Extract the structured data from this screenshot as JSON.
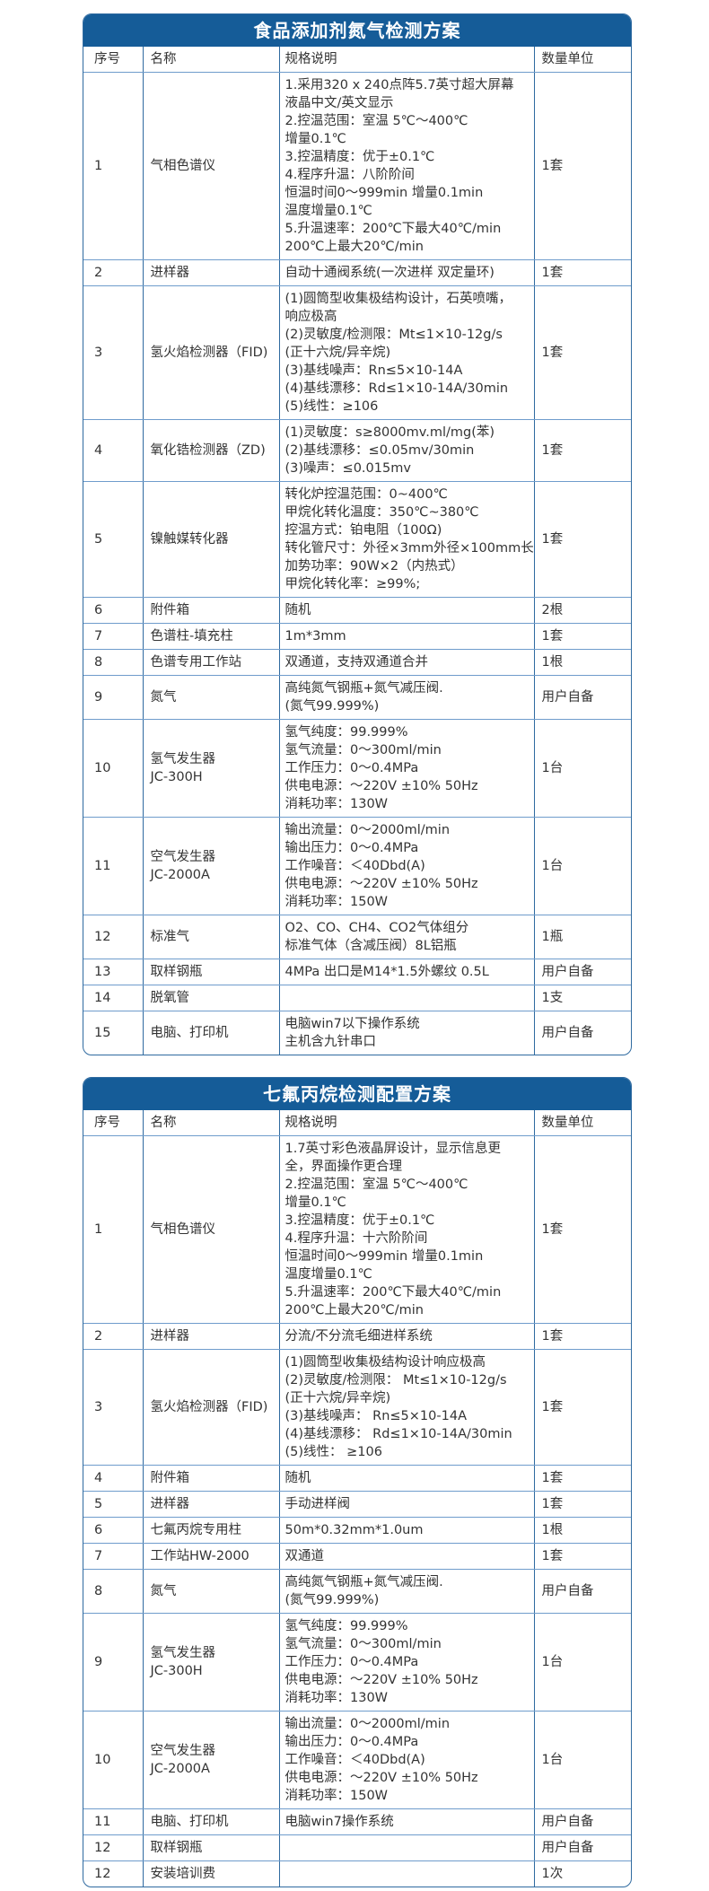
{
  "tables": [
    {
      "title": "食品添加剂氮气检测方案",
      "headers": [
        "序号",
        "名称",
        "规格说明",
        "数量单位"
      ],
      "rows": [
        {
          "no": "1",
          "name": [
            "气相色谱仪"
          ],
          "spec": [
            "1.采用320 x 240点阵5.7英寸超大屏幕",
            "液晶中文/英文显示",
            "2.控温范围：室温 5℃～400℃",
            "增量0.1℃",
            "3.控温精度：优于±0.1℃",
            "4.程序升温：八阶阶间",
            "恒温时间0～999min 增量0.1min",
            "温度增量0.1℃",
            "5.升温速率：200℃下最大40℃/min",
            "200℃上最大20℃/min"
          ],
          "qty": "1套"
        },
        {
          "no": "2",
          "name": [
            "进样器"
          ],
          "spec": [
            "自动十通阀系统(一次进样 双定量环)"
          ],
          "qty": "1套"
        },
        {
          "no": "3",
          "name": [
            "氢火焰检测器（FID)"
          ],
          "spec": [
            "(1)圆筒型收集极结构设计，石英喷嘴，",
            "响应极高",
            "(2)灵敏度/检测限：Mt≤1×10-12g/s",
            "(正十六烷/异辛烷)",
            "(3)基线噪声：Rn≤5×10-14A",
            "(4)基线漂移：Rd≤1×10-14A/30min",
            "(5)线性：≥106"
          ],
          "qty": "1套"
        },
        {
          "no": "4",
          "name": [
            "氧化锆检测器（ZD)"
          ],
          "spec": [
            "(1)灵敏度：s≥8000mv.ml/mg(苯)",
            "(2)基线漂移：≤0.05mv/30min",
            "(3)噪声：≤0.015mv"
          ],
          "qty": "1套"
        },
        {
          "no": "5",
          "name": [
            "镍触媒转化器"
          ],
          "spec": [
            "转化炉控温范围：0~400℃",
            "甲烷化转化温度：350℃~380℃",
            "控温方式：铂电阻（100Ω)",
            "转化管尺寸：外径×3mm外径×100mm长",
            "加势功率：90W×2（内热式）",
            "甲烷化转化率：≥99%;"
          ],
          "qty": "1套"
        },
        {
          "no": "6",
          "name": [
            "附件箱"
          ],
          "spec": [
            "随机"
          ],
          "qty": "2根"
        },
        {
          "no": "7",
          "name": [
            "色谱柱-填充柱"
          ],
          "spec": [
            "1m*3mm"
          ],
          "qty": "1套"
        },
        {
          "no": "8",
          "name": [
            "色谱专用工作站"
          ],
          "spec": [
            "双通道，支持双通道合并"
          ],
          "qty": "1根"
        },
        {
          "no": "9",
          "name": [
            "氮气"
          ],
          "spec": [
            "高纯氮气钢瓶+氮气减压阀.",
            "(氮气99.999%)"
          ],
          "qty": "用户自备"
        },
        {
          "no": "10",
          "name": [
            "氢气发生器",
            "JC-300H"
          ],
          "spec": [
            "氢气纯度：99.999%",
            "氢气流量：0～300ml/min",
            "工作压力：0～0.4MPa",
            "供电电源：～220V ±10% 50Hz",
            "消耗功率：130W"
          ],
          "qty": "1台"
        },
        {
          "no": "11",
          "name": [
            "空气发生器",
            "JC-2000A"
          ],
          "spec": [
            "输出流量：0～2000ml/min",
            "输出压力：0～0.4MPa",
            "工作噪音：＜40Dbd(A)",
            "供电电源：～220V ±10% 50Hz",
            "消耗功率：150W"
          ],
          "qty": "1台"
        },
        {
          "no": "12",
          "name": [
            "标准气"
          ],
          "spec": [
            "O2、CO、CH4、CO2气体组分",
            "标准气体（含减压阀）8L铝瓶"
          ],
          "qty": "1瓶"
        },
        {
          "no": "13",
          "name": [
            "取样钢瓶"
          ],
          "spec": [
            "4MPa 出口是M14*1.5外螺纹 0.5L"
          ],
          "qty": "用户自备"
        },
        {
          "no": "14",
          "name": [
            "脱氧管"
          ],
          "spec": [
            ""
          ],
          "qty": "1支"
        },
        {
          "no": "15",
          "name": [
            "电脑、打印机"
          ],
          "spec": [
            "电脑win7以下操作系统",
            "主机含九针串口"
          ],
          "qty": "用户自备"
        }
      ]
    },
    {
      "title": "七氟丙烷检测配置方案",
      "headers": [
        "序号",
        "名称",
        "规格说明",
        "数量单位"
      ],
      "rows": [
        {
          "no": "1",
          "name": [
            "气相色谱仪"
          ],
          "spec": [
            "1.7英寸彩色液晶屏设计，显示信息更",
            "全，界面操作更合理",
            "2.控温范围：室温 5℃～400℃",
            "增量0.1℃",
            "3.控温精度：优于±0.1℃",
            "4.程序升温：十六阶阶间",
            "恒温时间0～999min 增量0.1min",
            "温度增量0.1℃",
            "5.升温速率：200℃下最大40℃/min",
            "200℃上最大20℃/min"
          ],
          "qty": "1套"
        },
        {
          "no": "2",
          "name": [
            "进样器"
          ],
          "spec": [
            "分流/不分流毛细进样系统"
          ],
          "qty": "1套"
        },
        {
          "no": "3",
          "name": [
            "氢火焰检测器（FID)"
          ],
          "spec": [
            "(1)圆筒型收集极结构设计响应极高",
            "(2)灵敏度/检测限： Mt≤1×10-12g/s",
            "(正十六烷/异辛烷)",
            "(3)基线噪声： Rn≤5×10-14A",
            "(4)基线漂移： Rd≤1×10-14A/30min",
            "(5)线性： ≥106"
          ],
          "qty": "1套"
        },
        {
          "no": "4",
          "name": [
            "附件箱"
          ],
          "spec": [
            "随机"
          ],
          "qty": "1套"
        },
        {
          "no": "5",
          "name": [
            "进样器"
          ],
          "spec": [
            "手动进样阀"
          ],
          "qty": "1套"
        },
        {
          "no": "6",
          "name": [
            "七氟丙烷专用柱"
          ],
          "spec": [
            "50m*0.32mm*1.0um"
          ],
          "qty": "1根"
        },
        {
          "no": "7",
          "name": [
            "工作站HW-2000"
          ],
          "spec": [
            "双通道"
          ],
          "qty": "1套"
        },
        {
          "no": "8",
          "name": [
            "氮气"
          ],
          "spec": [
            "高纯氮气钢瓶+氮气减压阀.",
            "(氮气99.999%)"
          ],
          "qty": "用户自备"
        },
        {
          "no": "9",
          "name": [
            "氢气发生器",
            "JC-300H"
          ],
          "spec": [
            "氢气纯度：99.999%",
            "氢气流量：0～300ml/min",
            "工作压力：0～0.4MPa",
            "供电电源：～220V ±10% 50Hz",
            "消耗功率：130W"
          ],
          "qty": "1台"
        },
        {
          "no": "10",
          "name": [
            "空气发生器",
            "JC-2000A"
          ],
          "spec": [
            "输出流量：0～2000ml/min",
            "输出压力：0～0.4MPa",
            "工作噪音：＜40Dbd(A)",
            "供电电源：～220V ±10% 50Hz",
            "消耗功率：150W"
          ],
          "qty": "1台"
        },
        {
          "no": "11",
          "name": [
            "电脑、打印机"
          ],
          "spec": [
            "电脑win7操作系统"
          ],
          "qty": "用户自备"
        },
        {
          "no": "12",
          "name": [
            "取样钢瓶"
          ],
          "spec": [
            ""
          ],
          "qty": "用户自备"
        },
        {
          "no": "12",
          "name": [
            "安装培训费"
          ],
          "spec": [
            ""
          ],
          "qty": "1次"
        }
      ]
    }
  ],
  "colors": {
    "title_bar": "#155c98",
    "border": "#2f6aa0",
    "row_divider": "#6f9ccc"
  }
}
